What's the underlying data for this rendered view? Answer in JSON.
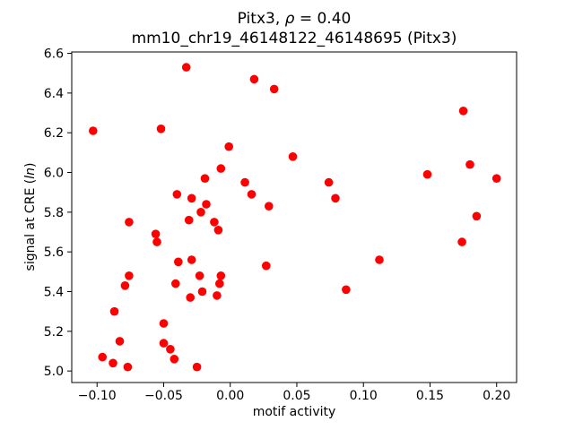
{
  "figure": {
    "title_line1": {
      "pre": "Pitx3, ",
      "sym": "ρ",
      "post": " = 0.40"
    },
    "title_line2": "mm10_chr19_46148122_46148695 (Pitx3)",
    "xlabel": "motif activity",
    "ylabel": {
      "pre": "signal at CRE (",
      "sym": "ln",
      "post": ")"
    }
  },
  "chart_data": {
    "type": "scatter",
    "title": "Pitx3, ρ = 0.40",
    "subtitle": "mm10_chr19_46148122_46148695 (Pitx3)",
    "xlabel": "motif activity",
    "ylabel": "signal at CRE (ln)",
    "xlim": [
      -0.119,
      0.215
    ],
    "ylim": [
      4.942,
      6.607
    ],
    "xticks": [
      -0.1,
      -0.05,
      0.0,
      0.05,
      0.1,
      0.15,
      0.2
    ],
    "yticks": [
      5.0,
      5.2,
      5.4,
      5.6,
      5.8,
      6.0,
      6.2,
      6.4,
      6.6
    ],
    "grid": false,
    "legend": "none",
    "marker": "circle",
    "marker_color": "#ff0000",
    "points": [
      [
        -0.033,
        6.53
      ],
      [
        0.018,
        6.47
      ],
      [
        0.033,
        6.42
      ],
      [
        0.175,
        6.31
      ],
      [
        -0.103,
        6.21
      ],
      [
        -0.052,
        6.22
      ],
      [
        -0.001,
        6.13
      ],
      [
        0.047,
        6.08
      ],
      [
        0.18,
        6.04
      ],
      [
        -0.007,
        6.02
      ],
      [
        0.148,
        5.99
      ],
      [
        0.2,
        5.97
      ],
      [
        -0.019,
        5.97
      ],
      [
        0.074,
        5.95
      ],
      [
        0.011,
        5.95
      ],
      [
        -0.04,
        5.89
      ],
      [
        0.016,
        5.89
      ],
      [
        0.079,
        5.87
      ],
      [
        -0.029,
        5.87
      ],
      [
        -0.018,
        5.84
      ],
      [
        0.029,
        5.83
      ],
      [
        -0.022,
        5.8
      ],
      [
        0.185,
        5.78
      ],
      [
        -0.031,
        5.76
      ],
      [
        -0.076,
        5.75
      ],
      [
        -0.012,
        5.75
      ],
      [
        -0.009,
        5.71
      ],
      [
        -0.056,
        5.69
      ],
      [
        -0.055,
        5.65
      ],
      [
        0.174,
        5.65
      ],
      [
        0.112,
        5.56
      ],
      [
        -0.029,
        5.56
      ],
      [
        -0.039,
        5.55
      ],
      [
        0.027,
        5.53
      ],
      [
        -0.076,
        5.48
      ],
      [
        -0.023,
        5.48
      ],
      [
        -0.007,
        5.48
      ],
      [
        -0.008,
        5.44
      ],
      [
        -0.041,
        5.44
      ],
      [
        -0.079,
        5.43
      ],
      [
        0.087,
        5.41
      ],
      [
        -0.021,
        5.4
      ],
      [
        -0.01,
        5.38
      ],
      [
        -0.03,
        5.37
      ],
      [
        -0.087,
        5.3
      ],
      [
        -0.05,
        5.24
      ],
      [
        -0.083,
        5.15
      ],
      [
        -0.05,
        5.14
      ],
      [
        -0.045,
        5.11
      ],
      [
        -0.096,
        5.07
      ],
      [
        -0.042,
        5.06
      ],
      [
        -0.088,
        5.04
      ],
      [
        -0.077,
        5.02
      ],
      [
        -0.025,
        5.02
      ]
    ]
  }
}
